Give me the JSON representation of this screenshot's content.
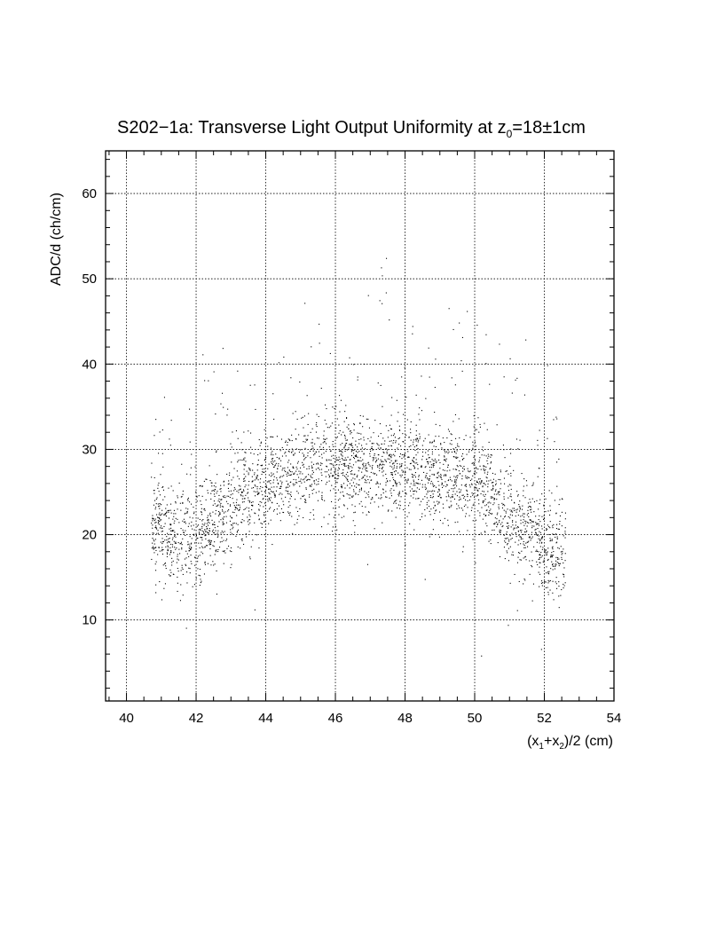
{
  "chart_data": {
    "type": "scatter",
    "title_parts": {
      "pre": "S202−1a: Transverse Light Output Uniformity at z",
      "sub": "0",
      "post": "=18±1cm"
    },
    "xlabel_parts": [
      "(x",
      "1",
      "+x",
      "2",
      ")/2 (cm)"
    ],
    "ylabel": "ADC/d (ch/cm)",
    "xlim": [
      39.4,
      54
    ],
    "ylim": [
      0.5,
      65
    ],
    "x_ticks": [
      "40",
      "42",
      "44",
      "46",
      "48",
      "50",
      "52",
      "54"
    ],
    "y_ticks": [
      "10",
      "20",
      "30",
      "40",
      "50",
      "60"
    ],
    "grid": true,
    "profile": {
      "x": [
        40.8,
        41.2,
        41.6,
        42.0,
        42.4,
        42.8,
        43.2,
        43.6,
        44.0,
        44.4,
        44.8,
        45.2,
        45.6,
        46.0,
        46.4,
        46.8,
        47.2,
        47.6,
        48.0,
        48.4,
        48.8,
        49.2,
        49.6,
        50.0,
        50.4,
        50.8,
        51.2,
        51.6,
        52.0,
        52.4
      ],
      "y": [
        21.5,
        20.0,
        19.5,
        20.0,
        21.5,
        22.5,
        24.0,
        25.0,
        25.8,
        26.5,
        27.0,
        27.8,
        28.2,
        28.5,
        28.0,
        27.8,
        28.2,
        28.0,
        27.8,
        27.5,
        27.2,
        27.0,
        27.0,
        26.8,
        25.0,
        23.0,
        22.0,
        20.5,
        18.5,
        17.5
      ]
    },
    "point_count": 3200
  }
}
